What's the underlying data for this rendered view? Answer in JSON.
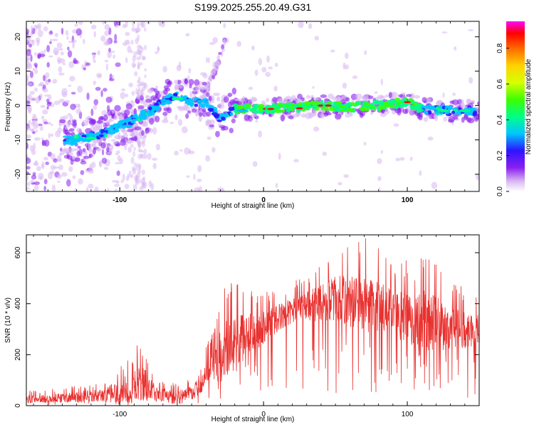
{
  "title": "S199.2025.255.20.49.G31",
  "chart_data": [
    {
      "type": "heatmap",
      "description_role": "spectrogram",
      "xlabel": "Height of straight line (km)",
      "ylabel": "Frequency (Hz)",
      "xlim": [
        -165,
        150
      ],
      "ylim": [
        -25,
        24.5
      ],
      "xticks": [
        -100,
        0,
        100
      ],
      "xtick_labels": [
        "-100",
        "0",
        "100"
      ],
      "yticks": [
        -20,
        -10,
        0,
        10,
        20
      ],
      "ytick_labels": [
        "-20",
        "-10",
        "0",
        "10",
        "20"
      ],
      "ridge": [
        {
          "x": -130,
          "y": -10
        },
        {
          "x": -120,
          "y": -9
        },
        {
          "x": -110,
          "y": -8
        },
        {
          "x": -100,
          "y": -6
        },
        {
          "x": -90,
          "y": -4
        },
        {
          "x": -80,
          "y": -2
        },
        {
          "x": -70,
          "y": 1
        },
        {
          "x": -60,
          "y": 3
        },
        {
          "x": -50,
          "y": 1
        },
        {
          "x": -40,
          "y": 1
        },
        {
          "x": -30,
          "y": -4
        },
        {
          "x": -20,
          "y": -1
        },
        {
          "x": 0,
          "y": -1
        },
        {
          "x": 20,
          "y": -0.5
        },
        {
          "x": 40,
          "y": 0
        },
        {
          "x": 60,
          "y": -0.5
        },
        {
          "x": 80,
          "y": 0
        },
        {
          "x": 100,
          "y": 1
        },
        {
          "x": 110,
          "y": -1
        },
        {
          "x": 130,
          "y": -1.5
        },
        {
          "x": 145,
          "y": -1.5
        }
      ],
      "colorbar": {
        "label": "Normalized spectral amplitude",
        "range": [
          0.0,
          0.95
        ],
        "ticks": [
          0.0,
          0.2,
          0.4,
          0.6,
          0.8
        ],
        "tick_labels": [
          "0.0",
          "0.2",
          "0.4",
          "0.6",
          "0.8"
        ]
      }
    },
    {
      "type": "line",
      "xlabel": "Height of straight line (km)",
      "ylabel": "SNR (10 * v/v)",
      "xlim": [
        -165,
        150
      ],
      "ylim": [
        0,
        670
      ],
      "xticks": [
        -100,
        0,
        100
      ],
      "xtick_labels": [
        "-100",
        "0",
        "100"
      ],
      "yticks": [
        0,
        200,
        400,
        600
      ],
      "ytick_labels": [
        "0",
        "200",
        "400",
        "600"
      ],
      "color": "#e8302e",
      "envelope": [
        {
          "x": -165,
          "mean": 25,
          "peak": 60
        },
        {
          "x": -140,
          "mean": 30,
          "peak": 70
        },
        {
          "x": -110,
          "mean": 40,
          "peak": 100
        },
        {
          "x": -95,
          "mean": 60,
          "peak": 200
        },
        {
          "x": -85,
          "mean": 90,
          "peak": 260
        },
        {
          "x": -75,
          "mean": 45,
          "peak": 110
        },
        {
          "x": -55,
          "mean": 40,
          "peak": 90
        },
        {
          "x": -45,
          "mean": 70,
          "peak": 150
        },
        {
          "x": -38,
          "mean": 150,
          "peak": 260
        },
        {
          "x": -25,
          "mean": 230,
          "peak": 500
        },
        {
          "x": -10,
          "mean": 280,
          "peak": 460
        },
        {
          "x": 0,
          "mean": 310,
          "peak": 460
        },
        {
          "x": 15,
          "mean": 360,
          "peak": 470
        },
        {
          "x": 30,
          "mean": 390,
          "peak": 520
        },
        {
          "x": 50,
          "mean": 420,
          "peak": 620
        },
        {
          "x": 73,
          "mean": 400,
          "peak": 670
        },
        {
          "x": 90,
          "mean": 360,
          "peak": 560
        },
        {
          "x": 115,
          "mean": 330,
          "peak": 600
        },
        {
          "x": 135,
          "mean": 300,
          "peak": 480
        },
        {
          "x": 150,
          "mean": 300,
          "peak": 450
        }
      ]
    }
  ]
}
